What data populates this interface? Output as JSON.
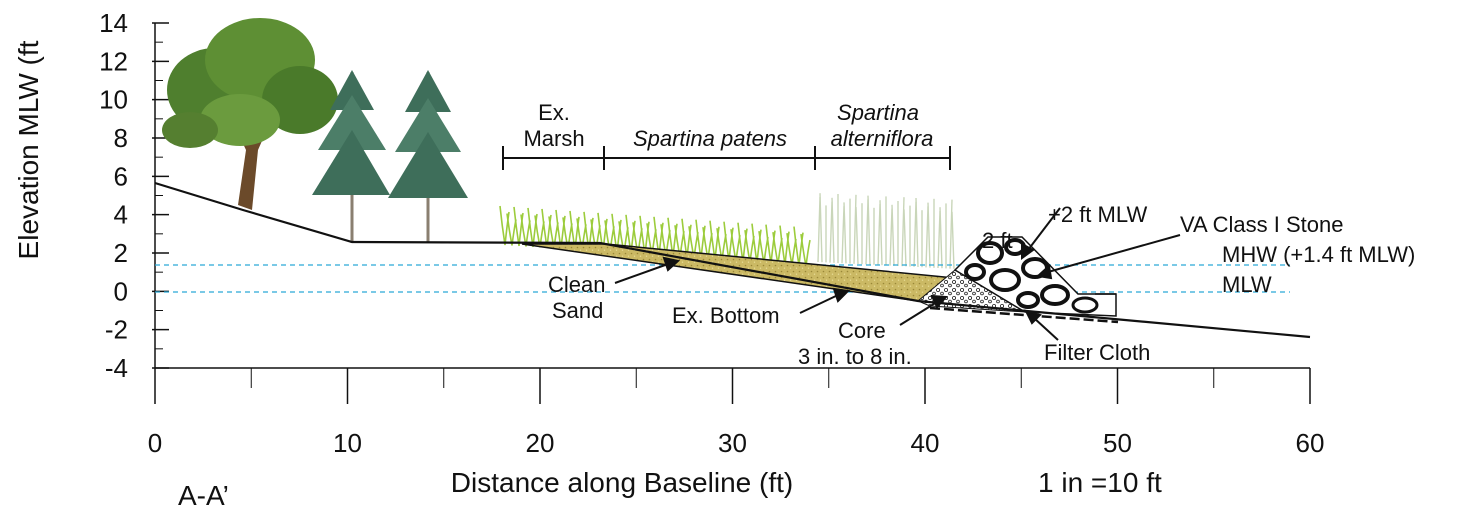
{
  "axes": {
    "ylabel": "Elevation MLW (ft",
    "xlabel": "Distance along Baseline (ft)",
    "yticks": [
      "14",
      "12",
      "10",
      "8",
      "6",
      "4",
      "2",
      "0",
      "-2",
      "-4"
    ],
    "xticks": [
      "0",
      "10",
      "20",
      "30",
      "40",
      "50",
      "60"
    ],
    "xlim": [
      0,
      60
    ],
    "ylim": [
      -4,
      14
    ]
  },
  "section_label": "A-A’",
  "scale_label": "1 in =10 ft",
  "zones": {
    "ex_marsh_line1": "Ex.",
    "ex_marsh_line2": "Marsh",
    "spartina_patens": "Spartina patens",
    "spartina_alt_line1": "Spartina",
    "spartina_alt_line2": "alterniflora"
  },
  "annotations": {
    "clean_sand_line1": "Clean",
    "clean_sand_line2": "Sand",
    "ex_bottom": "Ex. Bottom",
    "core_line1": "Core",
    "core_line2": "3 in. to 8 in.",
    "filter_cloth": "Filter Cloth",
    "plus2_mlw": "+2 ft MLW",
    "stone": "VA Class I Stone",
    "crest_width": "2 ft",
    "mhw": "MHW (+1.4 ft MLW)",
    "mlw": "MLW"
  },
  "profile": {
    "ground_points": [
      [
        0,
        5.7
      ],
      [
        5,
        4.2
      ],
      [
        10,
        2.6
      ],
      [
        10.5,
        2.5
      ],
      [
        18,
        2.5
      ],
      [
        40,
        0
      ],
      [
        60,
        -2.4
      ]
    ],
    "mhw_elev": 1.4,
    "mlw_elev": 0,
    "sill_crest_elev": 2
  },
  "colors": {
    "water_line": "#2aa9d6",
    "sand": "#c9b760",
    "stone_outline": "#111111",
    "grass": "#9ccc3c"
  }
}
